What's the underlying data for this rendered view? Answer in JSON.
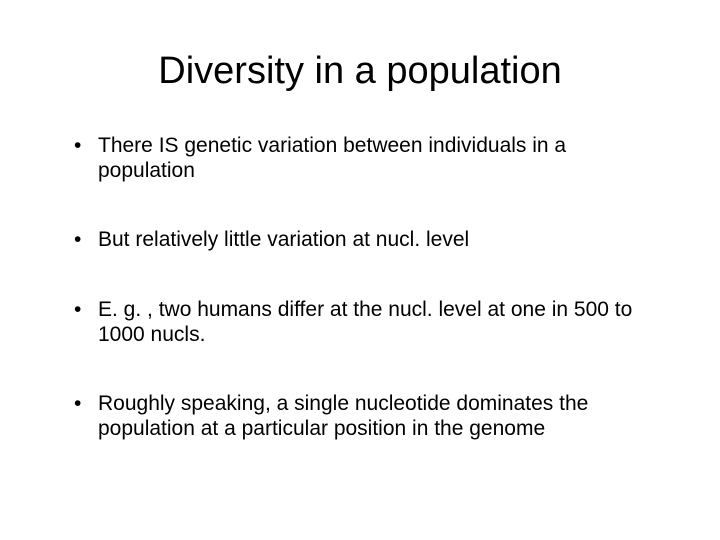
{
  "slide": {
    "title": "Diversity in a population",
    "bullets": [
      "There IS genetic variation between individuals in a population",
      "But relatively little variation at nucl. level",
      "E. g. , two humans differ at the nucl. level at one in 500 to 1000 nucls.",
      "Roughly speaking, a single nucleotide dominates the population at a particular position in the genome"
    ],
    "background_color": "#ffffff",
    "text_color": "#000000",
    "title_fontsize": 38,
    "body_fontsize": 21
  }
}
